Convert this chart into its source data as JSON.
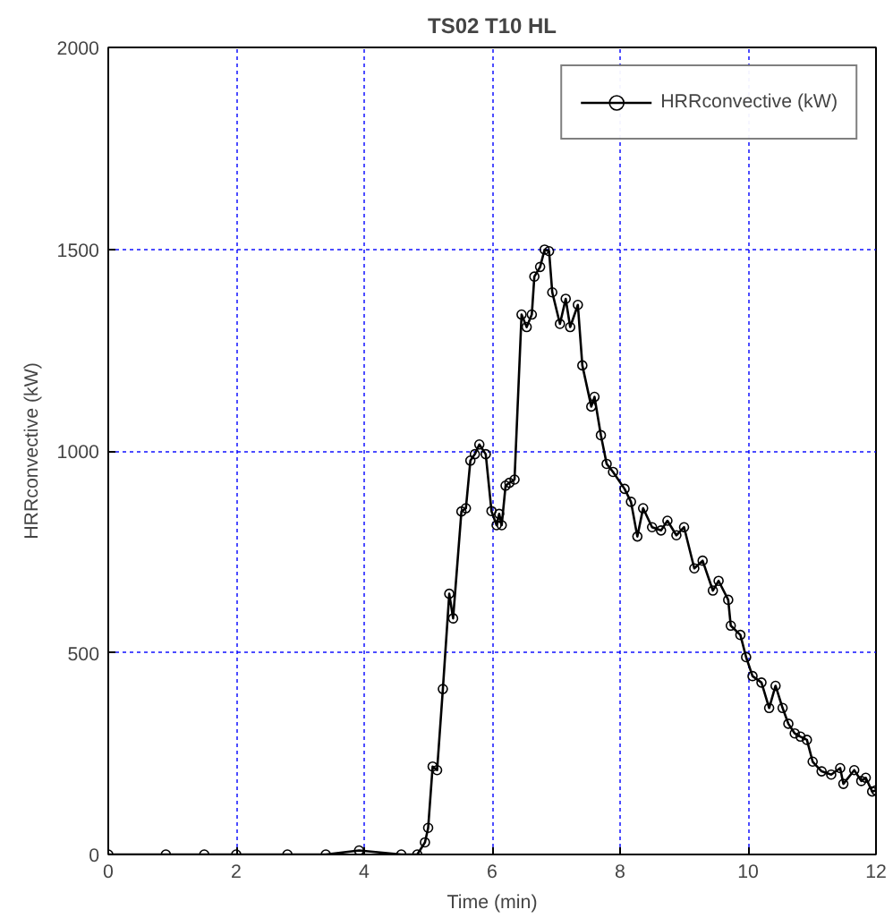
{
  "chart_data": {
    "type": "line",
    "title": "TS02 T10 HL",
    "xlabel": "Time (min)",
    "ylabel": "HRRconvective (kW)",
    "xlim": [
      0,
      12
    ],
    "ylim": [
      0,
      2000
    ],
    "xticks": [
      0,
      2,
      4,
      6,
      8,
      10,
      12
    ],
    "yticks": [
      0,
      500,
      1000,
      1500,
      2000
    ],
    "grid": true,
    "legend": "top right",
    "marker": "circle",
    "line_style": "solid",
    "series": [
      {
        "name": "HRRconvective (kW)",
        "color": "#000000",
        "x": [
          0,
          0.9,
          1.5,
          2.0,
          2.8,
          3.4,
          3.92,
          4.58,
          4.83,
          4.95,
          5.0,
          5.07,
          5.14,
          5.23,
          5.33,
          5.39,
          5.52,
          5.59,
          5.66,
          5.73,
          5.8,
          5.9,
          5.99,
          6.07,
          6.11,
          6.15,
          6.21,
          6.27,
          6.35,
          6.46,
          6.54,
          6.62,
          6.66,
          6.75,
          6.82,
          6.89,
          6.94,
          7.06,
          7.15,
          7.22,
          7.34,
          7.41,
          7.55,
          7.6,
          7.7,
          7.79,
          7.89,
          8.07,
          8.17,
          8.27,
          8.36,
          8.5,
          8.64,
          8.74,
          8.88,
          9.0,
          9.16,
          9.29,
          9.45,
          9.54,
          9.69,
          9.73,
          9.88,
          9.97,
          10.07,
          10.21,
          10.33,
          10.43,
          10.54,
          10.63,
          10.73,
          10.82,
          10.92,
          11.01,
          11.15,
          11.3,
          11.44,
          11.49,
          11.66,
          11.77,
          11.84,
          11.94,
          12.0
        ],
        "values": [
          0,
          0,
          0,
          0,
          0,
          0,
          10,
          0,
          0,
          30,
          66,
          218,
          209,
          410,
          646,
          585,
          850,
          858,
          976,
          992,
          1016,
          992,
          851,
          816,
          844,
          816,
          914,
          921,
          929,
          1338,
          1307,
          1338,
          1432,
          1456,
          1499,
          1495,
          1393,
          1315,
          1377,
          1307,
          1362,
          1212,
          1110,
          1134,
          1039,
          968,
          948,
          906,
          874,
          788,
          858,
          811,
          803,
          827,
          791,
          811,
          709,
          728,
          654,
          678,
          631,
          567,
          544,
          489,
          442,
          426,
          363,
          418,
          363,
          324,
          300,
          292,
          284,
          230,
          206,
          198,
          214,
          175,
          209,
          182,
          190,
          156,
          159
        ]
      }
    ]
  }
}
